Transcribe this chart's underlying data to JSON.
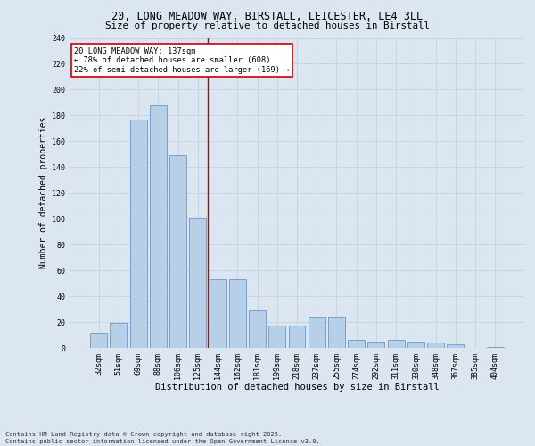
{
  "title_line1": "20, LONG MEADOW WAY, BIRSTALL, LEICESTER, LE4 3LL",
  "title_line2": "Size of property relative to detached houses in Birstall",
  "categories": [
    "32sqm",
    "51sqm",
    "69sqm",
    "88sqm",
    "106sqm",
    "125sqm",
    "144sqm",
    "162sqm",
    "181sqm",
    "199sqm",
    "218sqm",
    "237sqm",
    "255sqm",
    "274sqm",
    "292sqm",
    "311sqm",
    "330sqm",
    "348sqm",
    "367sqm",
    "385sqm",
    "404sqm"
  ],
  "values": [
    12,
    19,
    177,
    188,
    149,
    101,
    53,
    53,
    29,
    17,
    17,
    24,
    24,
    6,
    5,
    6,
    5,
    4,
    3,
    0,
    1
  ],
  "bar_color": "#b8cfe8",
  "bar_edge_color": "#6699cc",
  "grid_color": "#c8d4e4",
  "background_color": "#dce6f0",
  "ylabel": "Number of detached properties",
  "xlabel": "Distribution of detached houses by size in Birstall",
  "vline_x": 5.5,
  "vline_color": "#cc0000",
  "annotation_text": "20 LONG MEADOW WAY: 137sqm\n← 78% of detached houses are smaller (608)\n22% of semi-detached houses are larger (169) →",
  "annotation_box_color": "#ffffff",
  "annotation_box_edge": "#cc0000",
  "footer_line1": "Contains HM Land Registry data © Crown copyright and database right 2025.",
  "footer_line2": "Contains public sector information licensed under the Open Government Licence v3.0.",
  "ylim": [
    0,
    240
  ],
  "yticks": [
    0,
    20,
    40,
    60,
    80,
    100,
    120,
    140,
    160,
    180,
    200,
    220,
    240
  ],
  "title_fontsize": 8.5,
  "subtitle_fontsize": 7.8,
  "ylabel_fontsize": 7.0,
  "xlabel_fontsize": 7.5,
  "tick_fontsize": 6.0,
  "annot_fontsize": 6.2,
  "footer_fontsize": 5.0
}
